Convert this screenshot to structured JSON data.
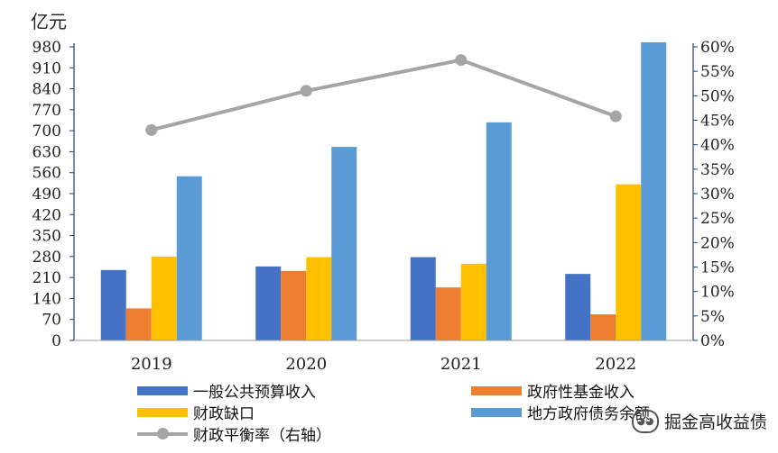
{
  "chart_data": {
    "type": "bar",
    "unit_label": "亿元",
    "categories": [
      "2019",
      "2020",
      "2021",
      "2022"
    ],
    "series": [
      {
        "name": "一般公共预算收入",
        "color": "#4472C4",
        "values": [
          235,
          247,
          278,
          222
        ]
      },
      {
        "name": "政府性基金收入",
        "color": "#ED7D31",
        "values": [
          107,
          232,
          177,
          87
        ]
      },
      {
        "name": "财政缺口",
        "color": "#FFC000",
        "values": [
          280,
          278,
          256,
          521
        ]
      },
      {
        "name": "地方政府债务余额",
        "color": "#5B9BD5",
        "values": [
          548,
          646,
          728,
          995
        ]
      }
    ],
    "line_series": {
      "name": "财政平衡率（右轴）",
      "color": "#A5A5A5",
      "axis": "right",
      "values": [
        43.0,
        51.0,
        57.3,
        45.8
      ]
    },
    "left_axis": {
      "ylim": [
        0,
        980
      ],
      "ticks": [
        "0",
        "70",
        "140",
        "210",
        "280",
        "350",
        "420",
        "490",
        "560",
        "630",
        "700",
        "770",
        "840",
        "910",
        "980"
      ]
    },
    "right_axis": {
      "ylim": [
        0,
        60
      ],
      "ticks": [
        "0%",
        "5%",
        "10%",
        "15%",
        "20%",
        "25%",
        "30%",
        "35%",
        "40%",
        "45%",
        "50%",
        "55%",
        "60%"
      ]
    },
    "grid": false,
    "legend_position": "bottom"
  },
  "watermark": {
    "icon": "wechat-icon",
    "text": "掘金高收益债"
  }
}
